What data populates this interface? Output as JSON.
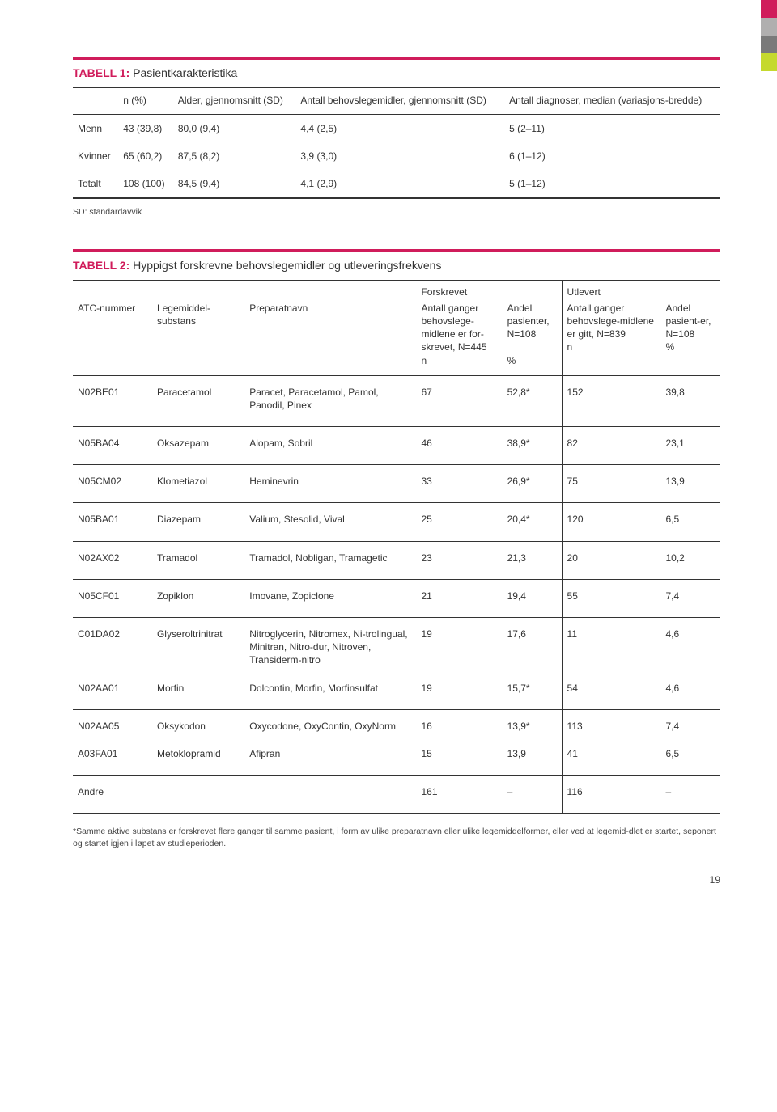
{
  "sideTabs": [
    "#d01c5b",
    "#b0afaf",
    "#7a7a7a",
    "#c5d92d"
  ],
  "table1": {
    "titleLabel": "TABELL 1:",
    "titleDesc": "Pasientkarakteristika",
    "columns": [
      "",
      "n (%)",
      "Alder, gjennomsnitt (SD)",
      "Antall behovslegemidler, gjennomsnitt (SD)",
      "Antall diagnoser, median (variasjons-bredde)"
    ],
    "rows": [
      [
        "Menn",
        "43 (39,8)",
        "80,0 (9,4)",
        "4,4 (2,5)",
        "5 (2–11)"
      ],
      [
        "Kvinner",
        "65 (60,2)",
        "87,5 (8,2)",
        "3,9 (3,0)",
        "6 (1–12)"
      ],
      [
        "Totalt",
        "108 (100)",
        "84,5 (9,4)",
        "4,1 (2,9)",
        "5 (1–12)"
      ]
    ],
    "footnote": "SD: standardavvik"
  },
  "table2": {
    "titleLabel": "TABELL 2:",
    "titleDesc": "Hyppigst forskrevne behovslegemidler og utleveringsfrekvens",
    "groupHeaders": {
      "g1": "Forskrevet",
      "g2": "Utlevert"
    },
    "columns": {
      "c1": "ATC-nummer",
      "c2": "Legemiddel-substans",
      "c3": "Preparatnavn",
      "c4": "Antall ganger behovslege-midlene er for-skrevet, N=445\nn",
      "c5": "Andel pasienter, N=108\n\n%",
      "c6": "Antall ganger behovslege-midlene er gitt, N=839\nn",
      "c7": "Andel pasient-er, N=108\n%"
    },
    "rows": [
      {
        "atc": "N02BE01",
        "sub": "Paracetamol",
        "prep": "Paracet, Paracetamol, Pamol, Panodil, Pinex",
        "v1": "67",
        "v2": "52,8*",
        "v3": "152",
        "v4": "39,8"
      },
      {
        "atc": "N05BA04",
        "sub": "Oksazepam",
        "prep": "Alopam, Sobril",
        "v1": "46",
        "v2": "38,9*",
        "v3": "82",
        "v4": "23,1"
      },
      {
        "atc": "N05CM02",
        "sub": "Klometiazol",
        "prep": "Heminevrin",
        "v1": "33",
        "v2": "26,9*",
        "v3": "75",
        "v4": "13,9"
      },
      {
        "atc": "N05BA01",
        "sub": "Diazepam",
        "prep": "Valium, Stesolid, Vival",
        "v1": "25",
        "v2": "20,4*",
        "v3": "120",
        "v4": "6,5"
      },
      {
        "atc": "N02AX02",
        "sub": "Tramadol",
        "prep": "Tramadol, Nobligan, Tramagetic",
        "v1": "23",
        "v2": "21,3",
        "v3": "20",
        "v4": "10,2"
      },
      {
        "atc": "N05CF01",
        "sub": "Zopiklon",
        "prep": "Imovane, Zopiclone",
        "v1": "21",
        "v2": "19,4",
        "v3": "55",
        "v4": "7,4"
      },
      {
        "atc": "C01DA02",
        "sub": "Glyseroltrinitrat",
        "prep": "Nitroglycerin, Nitromex, Ni-trolingual, Minitran, Nitro-dur, Nitroven, Transiderm-nitro",
        "v1": "19",
        "v2": "17,6",
        "v3": "11",
        "v4": "4,6",
        "nob": true
      },
      {
        "atc": "N02AA01",
        "sub": "Morfin",
        "prep": "Dolcontin, Morfin, Morfinsulfat",
        "v1": "19",
        "v2": "15,7*",
        "v3": "54",
        "v4": "4,6"
      },
      {
        "atc": "N02AA05",
        "sub": "Oksykodon",
        "prep": "Oxycodone, OxyContin, OxyNorm",
        "v1": "16",
        "v2": "13,9*",
        "v3": "113",
        "v4": "7,4",
        "nob": true
      },
      {
        "atc": "A03FA01",
        "sub": "Metoklopramid",
        "prep": "Afipran",
        "v1": "15",
        "v2": "13,9",
        "v3": "41",
        "v4": "6,5"
      },
      {
        "atc": "Andre",
        "sub": "",
        "prep": "",
        "v1": "161",
        "v2": "–",
        "v3": "116",
        "v4": "–",
        "last": true
      }
    ],
    "footnote": "*Samme aktive substans er forskrevet flere ganger til samme pasient, i form av ulike preparatnavn eller ulike legemiddelformer, eller ved at legemid-dlet er startet, seponert og startet igjen i løpet av studieperioden."
  },
  "pageNumber": "19"
}
